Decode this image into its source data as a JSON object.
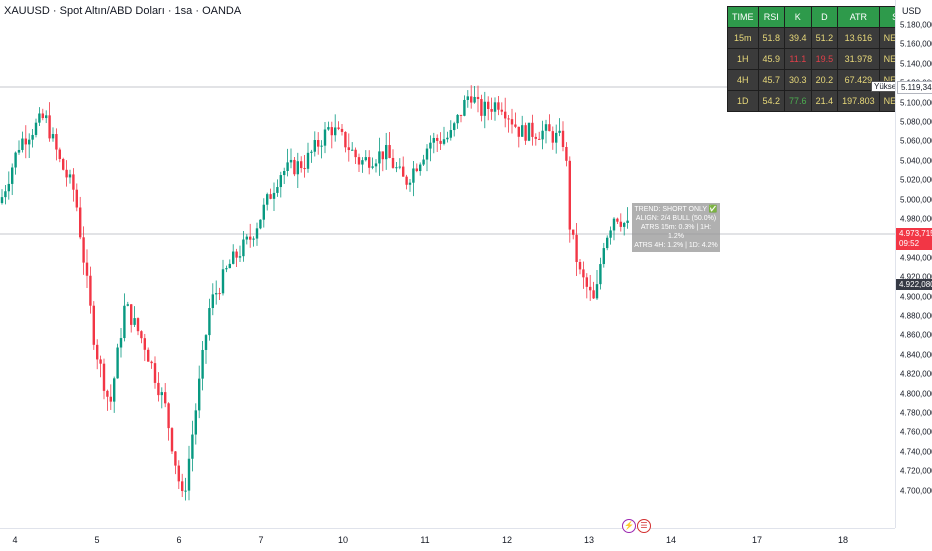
{
  "title": "XAUUSD · Spot Altın/ABD Doları · 1sa · OANDA",
  "currency": "USD",
  "price_axis": {
    "labels": [
      "5.180,000",
      "5.160,000",
      "5.140,000",
      "5.120,000",
      "5.100,000",
      "5.080,000",
      "5.060,000",
      "5.040,000",
      "5.020,000",
      "5.000,000",
      "4.980,000",
      "4.960,000",
      "4.940,000",
      "4.920,000",
      "4.900,000",
      "4.880,000",
      "4.860,000",
      "4.840,000",
      "4.820,000",
      "4.800,000",
      "4.780,000",
      "4.760,000",
      "4.740,000",
      "4.720,000",
      "4.700,000"
    ],
    "high_tag": "5.119,345",
    "current_price": "4.973,715",
    "countdown": "09:52",
    "low_tag": "4.922,080"
  },
  "time_axis": {
    "labels": [
      "4",
      "5",
      "6",
      "7",
      "10",
      "11",
      "12",
      "13",
      "14",
      "17",
      "18"
    ]
  },
  "tooltip": "Yüksek",
  "indicator_table": {
    "headers": [
      "TIME",
      "RSI",
      "K",
      "D",
      "ATR",
      "STATUS"
    ],
    "rows": [
      {
        "time": "15m",
        "rsi": "51.8",
        "k": "39.4",
        "d": "51.2",
        "atr": "13.616",
        "status": "NEUTRAL"
      },
      {
        "time": "1H",
        "rsi": "45.9",
        "k": "11.1",
        "d": "19.5",
        "atr": "31.978",
        "status": "NEUTRAL"
      },
      {
        "time": "4H",
        "rsi": "45.7",
        "k": "30.3",
        "d": "20.2",
        "atr": "67.429",
        "status": "NEUTRAL"
      },
      {
        "time": "1D",
        "rsi": "54.2",
        "k": "77.6",
        "d": "21.4",
        "atr": "197.803",
        "status": "NEUTRAL"
      }
    ],
    "colors": {
      "header_bg": "#2e9a4b",
      "cell_bg": "#3b3b3b",
      "cell_text": "#e8d97a",
      "red_text": "#e0404a",
      "green_text": "#4caf50"
    }
  },
  "info_box": {
    "line1": "TREND: SHORT ONLY ✅",
    "line2": "ALIGN: 2/4 BULL (50.0%)",
    "line3": "ATRS 15m: 0.3% | 1H: 1.2%",
    "line4": "ATRS 4H: 1.2% | 1D: 4.2%"
  },
  "colors": {
    "up": "#089981",
    "down": "#f23645",
    "current_price_tag": "#f23645",
    "low_tag": "#363a45"
  },
  "chart_data": {
    "type": "candlestick",
    "symbol": "XAUUSD",
    "timeframe": "1h",
    "y_range": [
      4690,
      5190
    ],
    "x_ticks": [
      "4",
      "5",
      "6",
      "7",
      "10",
      "11",
      "12",
      "13",
      "14",
      "17",
      "18"
    ],
    "approx_close_path": [
      {
        "x": "4",
        "close": 5000
      },
      {
        "x": "4.5",
        "close": 5080
      },
      {
        "x": "5",
        "close": 5020
      },
      {
        "x": "5.5",
        "close": 4900
      },
      {
        "x": "6",
        "close": 4720
      },
      {
        "x": "6.5",
        "close": 4880
      },
      {
        "x": "7",
        "close": 4990
      },
      {
        "x": "7.5",
        "close": 5040
      },
      {
        "x": "10",
        "close": 5060
      },
      {
        "x": "10.5",
        "close": 5030
      },
      {
        "x": "11",
        "close": 5050
      },
      {
        "x": "11.5",
        "close": 5110
      },
      {
        "x": "12",
        "close": 5060
      },
      {
        "x": "12.5",
        "close": 5070
      },
      {
        "x": "12.8",
        "close": 5060
      },
      {
        "x": "13",
        "close": 4950
      },
      {
        "x": "13",
        "close": 4900
      },
      {
        "x": "13.3",
        "close": 4980
      },
      {
        "x": "13.5",
        "close": 4974
      }
    ]
  }
}
